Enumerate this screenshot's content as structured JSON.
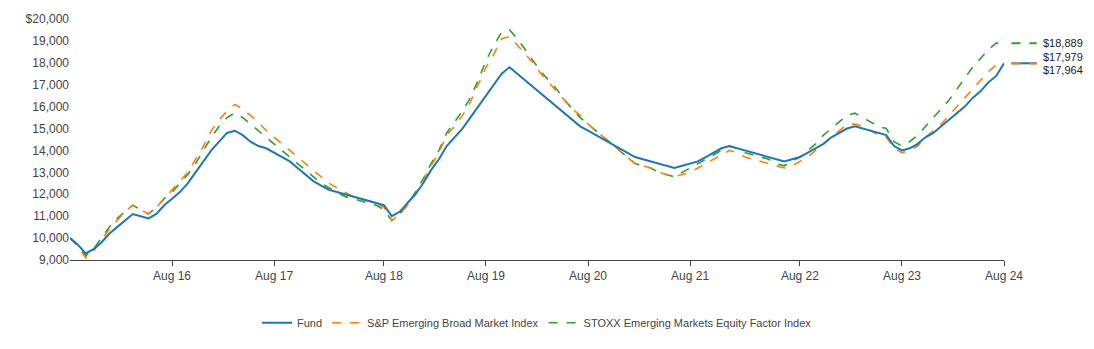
{
  "chart_data": {
    "type": "line",
    "categories": [
      null,
      null,
      null,
      null,
      null,
      null,
      null,
      null,
      null,
      null,
      null,
      null,
      null,
      "Aug 16",
      null,
      null,
      null,
      null,
      null,
      null,
      null,
      null,
      null,
      null,
      null,
      null,
      "Aug 17",
      null,
      null,
      null,
      null,
      null,
      null,
      null,
      null,
      null,
      null,
      null,
      null,
      null,
      "Aug 18",
      null,
      null,
      null,
      null,
      null,
      null,
      null,
      null,
      null,
      null,
      null,
      null,
      "Aug 19",
      null,
      null,
      null,
      null,
      null,
      null,
      null,
      null,
      null,
      null,
      null,
      null,
      "Aug 20",
      null,
      null,
      null,
      null,
      null,
      null,
      null,
      null,
      null,
      null,
      null,
      null,
      "Aug 21",
      null,
      null,
      null,
      null,
      null,
      null,
      null,
      null,
      null,
      null,
      null,
      null,
      null,
      "Aug 22",
      null,
      null,
      null,
      null,
      null,
      null,
      null,
      null,
      null,
      null,
      null,
      null,
      "Aug 23",
      null,
      null,
      null,
      null,
      null,
      null,
      null,
      null,
      null,
      null,
      null,
      null,
      "Aug 24"
    ],
    "series": [
      {
        "name": "Fund",
        "line_style": "solid",
        "values": [
          10000,
          9700,
          9300,
          9500,
          9800,
          10200,
          10500,
          10800,
          11100,
          11000,
          10900,
          11100,
          11500,
          11800,
          12100,
          12500,
          13000,
          13500,
          14000,
          14400,
          14800,
          14900,
          14700,
          14400,
          14200,
          14100,
          13900,
          13700,
          13500,
          13200,
          12900,
          12600,
          12400,
          12200,
          12100,
          12000,
          11900,
          11800,
          11700,
          11600,
          11500,
          11000,
          11200,
          11600,
          12000,
          12500,
          13100,
          13600,
          14200,
          14600,
          15000,
          15500,
          16000,
          16500,
          17000,
          17500,
          17800,
          17500,
          17200,
          16900,
          16600,
          16300,
          16000,
          15700,
          15400,
          15100,
          14900,
          14700,
          14500,
          14300,
          14100,
          13900,
          13700,
          13600,
          13500,
          13400,
          13300,
          13200,
          13300,
          13400,
          13500,
          13700,
          13900,
          14100,
          14200,
          14100,
          14000,
          13900,
          13800,
          13700,
          13600,
          13500,
          13600,
          13700,
          13900,
          14100,
          14300,
          14600,
          14800,
          15000,
          15100,
          15000,
          14900,
          14800,
          14700,
          14200,
          14000,
          14100,
          14300,
          14600,
          14800,
          15100,
          15400,
          15700,
          16000,
          16400,
          16700,
          17100,
          17400,
          17979
        ]
      },
      {
        "name": "S&P Emerging Broad Market Index",
        "line_style": "dashed",
        "values": [
          10000,
          9600,
          9100,
          9400,
          9900,
          10400,
          10800,
          11200,
          11500,
          11300,
          11100,
          11400,
          11800,
          12200,
          12600,
          13000,
          13600,
          14200,
          14900,
          15400,
          15800,
          16100,
          15900,
          15600,
          15300,
          14900,
          14600,
          14300,
          14000,
          13700,
          13400,
          13100,
          12800,
          12500,
          12300,
          12100,
          11900,
          11800,
          11700,
          11600,
          11400,
          10800,
          11100,
          11500,
          12000,
          12600,
          13300,
          13900,
          14700,
          15100,
          15600,
          16200,
          17000,
          17800,
          18400,
          19100,
          19200,
          18800,
          18400,
          18000,
          17500,
          17100,
          16700,
          16300,
          15900,
          15600,
          15200,
          14900,
          14600,
          14300,
          14000,
          13700,
          13400,
          13300,
          13200,
          13000,
          12900,
          12800,
          12900,
          13000,
          13200,
          13400,
          13600,
          13800,
          14000,
          13900,
          13700,
          13600,
          13500,
          13400,
          13300,
          13200,
          13300,
          13500,
          13700,
          14000,
          14300,
          14600,
          14900,
          15200,
          15200,
          15100,
          14900,
          14700,
          14600,
          14100,
          13900,
          14000,
          14200,
          14600,
          14900,
          15200,
          15600,
          16000,
          16400,
          16800,
          17200,
          17600,
          17900,
          17964
        ]
      },
      {
        "name": "STOXX Emerging Markets Equity Factor Index",
        "line_style": "dashed",
        "values": [
          10000,
          9700,
          9200,
          9500,
          10000,
          10500,
          10900,
          11200,
          11500,
          11300,
          11100,
          11400,
          11800,
          12100,
          12500,
          12900,
          13400,
          14000,
          14600,
          15100,
          15500,
          15700,
          15500,
          15200,
          14900,
          14600,
          14300,
          14000,
          13700,
          13400,
          13100,
          12800,
          12500,
          12300,
          12100,
          11900,
          11800,
          11700,
          11600,
          11500,
          11300,
          10800,
          11100,
          11500,
          12100,
          12700,
          13400,
          14000,
          14800,
          15300,
          15800,
          16400,
          17200,
          18100,
          18800,
          19400,
          19500,
          19100,
          18600,
          18100,
          17600,
          17200,
          16800,
          16300,
          15900,
          15500,
          15200,
          14900,
          14600,
          14300,
          14000,
          13700,
          13400,
          13300,
          13200,
          13000,
          12900,
          12800,
          13000,
          13200,
          13400,
          13600,
          13800,
          14000,
          14200,
          14100,
          13900,
          13800,
          13700,
          13600,
          13400,
          13300,
          13500,
          13700,
          14000,
          14300,
          14700,
          15000,
          15300,
          15600,
          15700,
          15500,
          15300,
          15100,
          15000,
          14400,
          14200,
          14400,
          14700,
          15100,
          15500,
          15900,
          16300,
          16800,
          17300,
          17800,
          18200,
          18600,
          18900,
          18889
        ]
      }
    ],
    "ylim": [
      9000,
      20000
    ],
    "yticks": [
      {
        "value": 9000,
        "label": "9,000"
      },
      {
        "value": 10000,
        "label": "10,000"
      },
      {
        "value": 11000,
        "label": "11,000"
      },
      {
        "value": 12000,
        "label": "12,000"
      },
      {
        "value": 13000,
        "label": "13,000"
      },
      {
        "value": 14000,
        "label": "14,000"
      },
      {
        "value": 15000,
        "label": "15,000"
      },
      {
        "value": 16000,
        "label": "16,000"
      },
      {
        "value": 17000,
        "label": "17,000"
      },
      {
        "value": 18000,
        "label": "18,000"
      },
      {
        "value": 19000,
        "label": "19,000"
      },
      {
        "value": 20000,
        "label": "$20,000"
      }
    ],
    "annotations": [
      {
        "text": "$18,889",
        "series": "STOXX Emerging Markets Equity Factor Index"
      },
      {
        "text": "$17,979",
        "series": "Fund"
      },
      {
        "text": "$17,964",
        "series": "S&P Emerging Broad Market Index"
      }
    ],
    "grid": false,
    "legend": "bottom"
  }
}
